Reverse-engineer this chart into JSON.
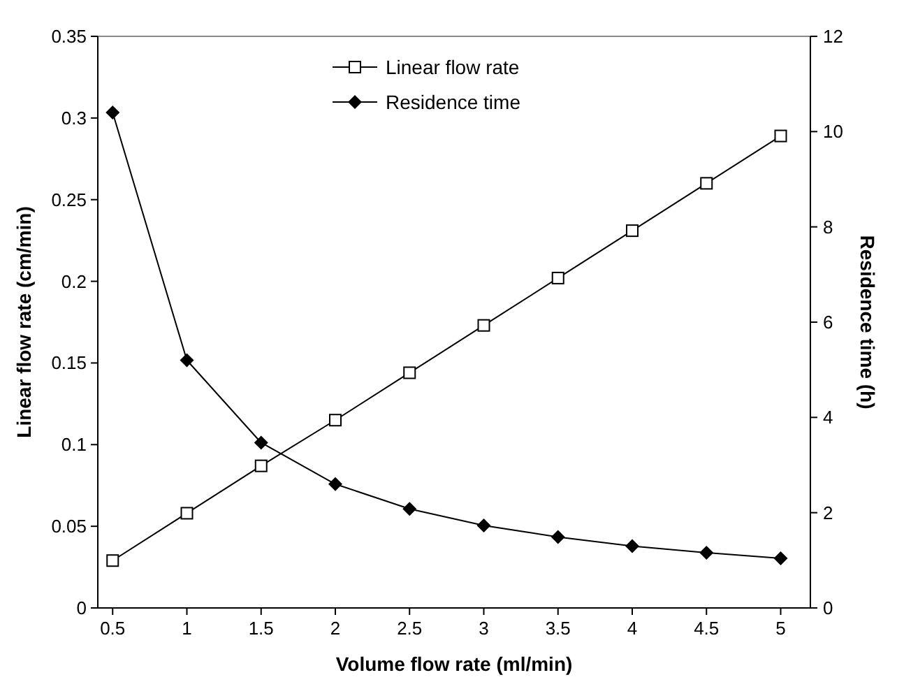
{
  "chart_data": {
    "type": "line",
    "xlabel": "Volume flow rate (ml/min)",
    "ylabel": "Linear flow rate (cm/min)",
    "y2label": "Residence time (h)",
    "x": [
      0.5,
      1,
      1.5,
      2,
      2.5,
      3,
      3.5,
      4,
      4.5,
      5
    ],
    "xlim": [
      0.4,
      5.2
    ],
    "xticks": [
      0.5,
      1,
      1.5,
      2,
      2.5,
      3,
      3.5,
      4,
      4.5,
      5
    ],
    "ylim": [
      0,
      0.35
    ],
    "yticks": [
      0,
      0.05,
      0.1,
      0.15,
      0.2,
      0.25,
      0.3,
      0.35
    ],
    "y2lim": [
      0,
      12
    ],
    "y2ticks": [
      0,
      2,
      4,
      6,
      8,
      10,
      12
    ],
    "grid": false,
    "legend": "top",
    "line_style": "solid",
    "series": [
      {
        "name": "Linear flow rate",
        "color": "#000000",
        "marker": "square",
        "values": [
          0.029,
          0.058,
          0.087,
          0.115,
          0.144,
          0.173,
          0.202,
          0.231,
          0.26,
          0.289
        ]
      },
      {
        "name": "Residence time",
        "color": "#000000",
        "marker": "diamond",
        "axis": "y2",
        "values": [
          10.4,
          5.2,
          3.47,
          2.6,
          2.08,
          1.73,
          1.49,
          1.3,
          1.16,
          1.04
        ]
      }
    ]
  }
}
